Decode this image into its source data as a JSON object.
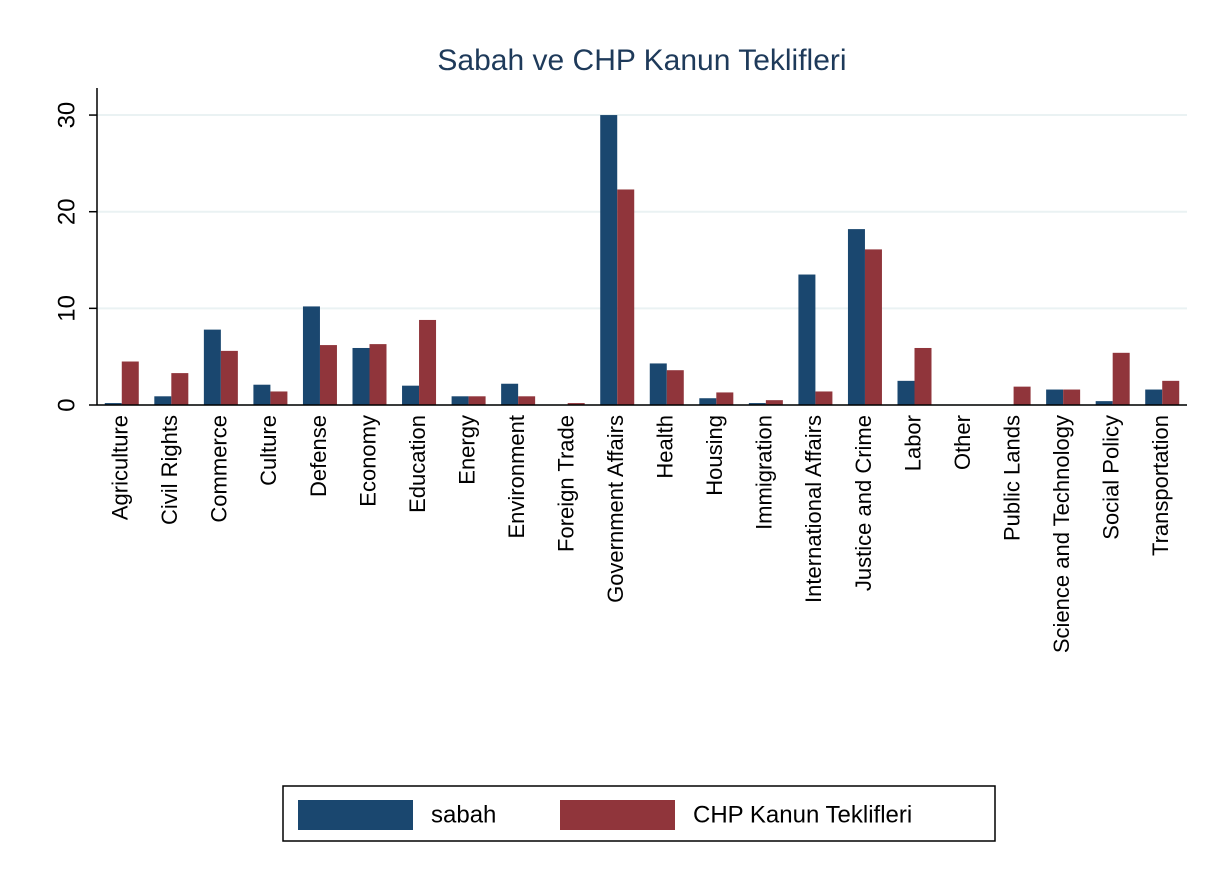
{
  "chart_data": {
    "type": "bar",
    "title": "Sabah ve CHP Kanun Teklifleri",
    "categories": [
      "Agriculture",
      "Civil Rights",
      "Commerce",
      "Culture",
      "Defense",
      "Economy",
      "Education",
      "Energy",
      "Environment",
      "Foreign Trade",
      "Government Affairs",
      "Health",
      "Housing",
      "Immigration",
      "International Affairs",
      "Justice and Crime",
      "Labor",
      "Other",
      "Public Lands",
      "Science and Technology",
      "Social Policy",
      "Transportation"
    ],
    "series": [
      {
        "name": "sabah",
        "color": "#1a476f",
        "values": [
          0.2,
          0.9,
          7.8,
          2.1,
          10.2,
          5.9,
          2.0,
          0.9,
          2.2,
          0,
          30.0,
          4.3,
          0.7,
          0.2,
          13.5,
          18.2,
          2.5,
          0,
          0,
          1.6,
          0.4,
          1.6
        ]
      },
      {
        "name": "CHP Kanun Teklifleri",
        "color": "#90353b",
        "values": [
          4.5,
          3.3,
          5.6,
          1.4,
          6.2,
          6.3,
          8.8,
          0.9,
          0.9,
          0.2,
          22.3,
          3.6,
          1.3,
          0.5,
          1.4,
          16.1,
          5.9,
          0,
          1.9,
          1.6,
          5.4,
          2.5
        ]
      }
    ],
    "ylim": [
      0,
      32.8
    ],
    "yticks": [
      0,
      10,
      20,
      30
    ],
    "grid": true,
    "legend": "bottom"
  }
}
